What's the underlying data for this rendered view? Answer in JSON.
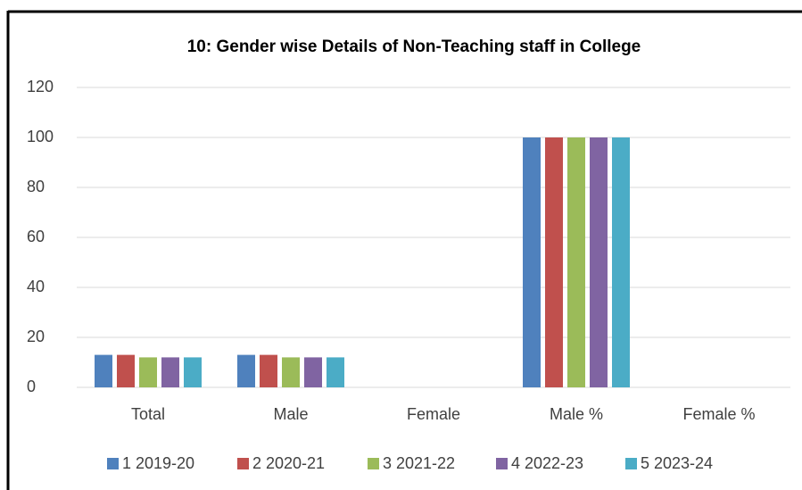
{
  "chart_data": {
    "type": "bar",
    "title": "10: Gender wise Details of Non-Teaching staff in College",
    "categories": [
      "Total",
      "Male",
      "Female",
      "Male %",
      "Female %"
    ],
    "series": [
      {
        "name": "1 2019-20",
        "color": "#4f81bd",
        "values": [
          13,
          13,
          0,
          100,
          0
        ]
      },
      {
        "name": "2 2020-21",
        "color": "#c0504d",
        "values": [
          13,
          13,
          0,
          100,
          0
        ]
      },
      {
        "name": "3 2021-22",
        "color": "#9bbb59",
        "values": [
          12,
          12,
          0,
          100,
          0
        ]
      },
      {
        "name": "4 2022-23",
        "color": "#8064a2",
        "values": [
          12,
          12,
          0,
          100,
          0
        ]
      },
      {
        "name": "5 2023-24",
        "color": "#4bacc6",
        "values": [
          12,
          12,
          0,
          100,
          0
        ]
      }
    ],
    "ylim": [
      0,
      120
    ],
    "yticks": [
      0,
      20,
      40,
      60,
      80,
      100,
      120
    ],
    "grid": true,
    "legend": "bottom"
  }
}
